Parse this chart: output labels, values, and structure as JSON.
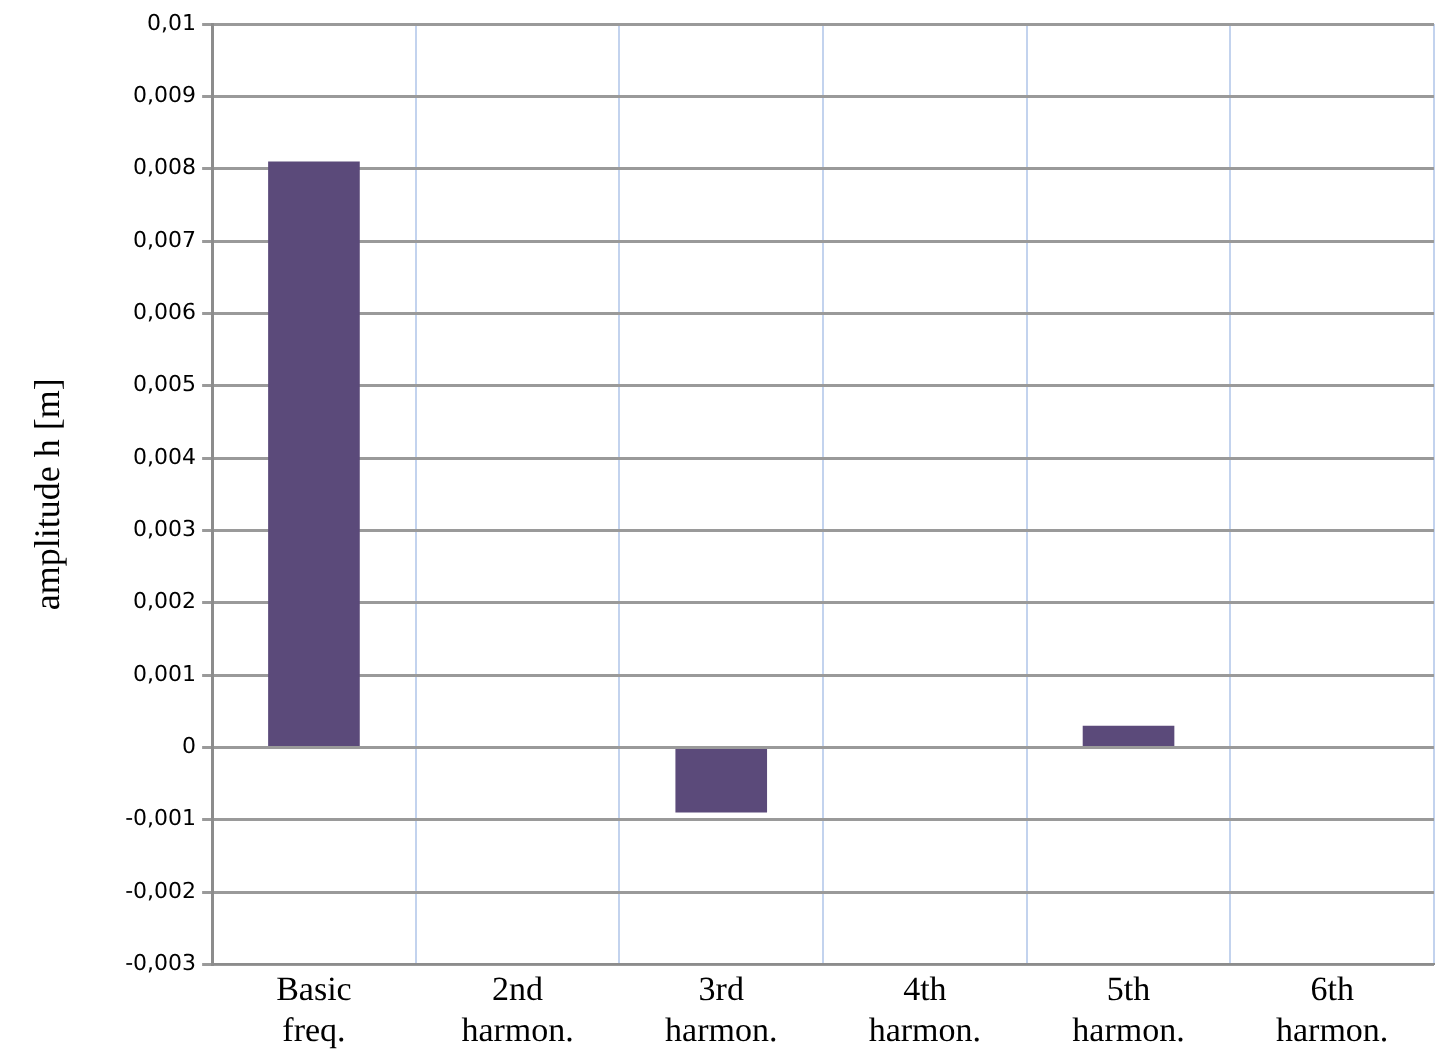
{
  "chart_data": {
    "type": "bar",
    "ylabel": "amplitude h [m]",
    "categories": [
      "Basic freq.",
      "2nd harmon.",
      "3rd harmon.",
      "4th harmon.",
      "5th harmon.",
      "6th harmon."
    ],
    "values": [
      0.0081,
      0,
      -0.0009,
      0,
      0.0003,
      0
    ],
    "color": "#5b4a7a",
    "ylim": [
      -0.003,
      0.01
    ],
    "yticks": [
      {
        "value": -0.003,
        "label": "-0,003"
      },
      {
        "value": -0.002,
        "label": "-0,002"
      },
      {
        "value": -0.001,
        "label": "-0,001"
      },
      {
        "value": 0,
        "label": "0"
      },
      {
        "value": 0.001,
        "label": "0,001"
      },
      {
        "value": 0.002,
        "label": "0,002"
      },
      {
        "value": 0.003,
        "label": "0,003"
      },
      {
        "value": 0.004,
        "label": "0,004"
      },
      {
        "value": 0.005,
        "label": "0,005"
      },
      {
        "value": 0.006,
        "label": "0,006"
      },
      {
        "value": 0.007,
        "label": "0,007"
      },
      {
        "value": 0.008,
        "label": "0,008"
      },
      {
        "value": 0.009,
        "label": "0,009"
      },
      {
        "value": 0.01,
        "label": "0,01"
      }
    ],
    "grid": true
  }
}
